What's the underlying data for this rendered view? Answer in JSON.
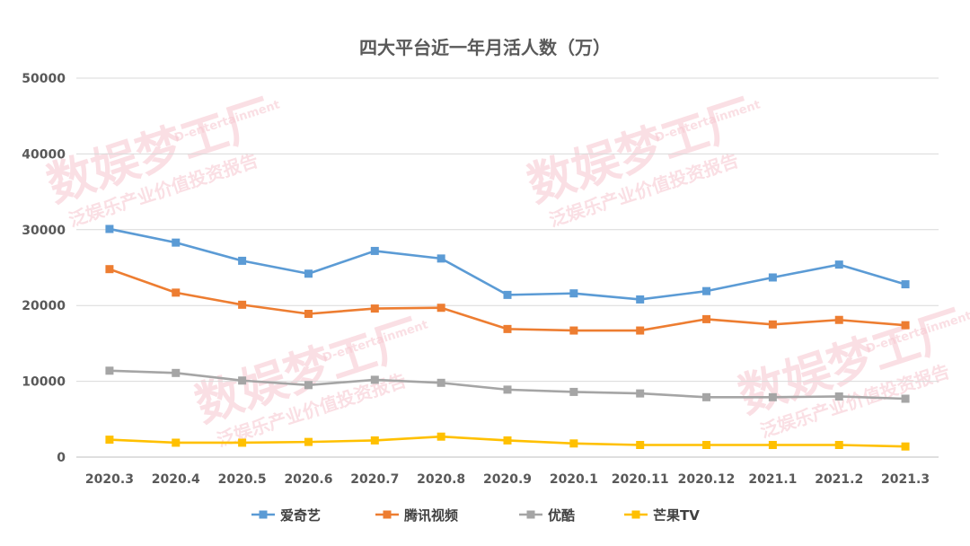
{
  "watermark": {
    "main": "数娱梦工厂",
    "en": "D-entertainment",
    "sub": "泛娱乐产业价值投资报告"
  },
  "chart_data": {
    "type": "line",
    "title": "四大平台近一年月活人数（万）",
    "categories": [
      "2020.3",
      "2020.4",
      "2020.5",
      "2020.6",
      "2020.7",
      "2020.8",
      "2020.9",
      "2020.1",
      "2020.11",
      "2020.12",
      "2021.1",
      "2021.2",
      "2021.3"
    ],
    "ylim": [
      0,
      50000
    ],
    "yticks": [
      "0",
      "10000",
      "20000",
      "30000",
      "40000",
      "50000"
    ],
    "grid": true,
    "legend_position": "bottom",
    "series": [
      {
        "name": "爱奇艺",
        "color": "#5b9bd5",
        "values": [
          30100,
          28300,
          25900,
          24200,
          27200,
          26200,
          21400,
          21600,
          20800,
          21900,
          23700,
          25400,
          22800
        ]
      },
      {
        "name": "腾讯视频",
        "color": "#ed7d31",
        "values": [
          24800,
          21700,
          20100,
          18900,
          19600,
          19700,
          16900,
          16700,
          16700,
          18200,
          17500,
          18100,
          17400
        ]
      },
      {
        "name": "优酷",
        "color": "#a5a5a5",
        "values": [
          11400,
          11100,
          10100,
          9500,
          10200,
          9800,
          8900,
          8600,
          8400,
          7900,
          7900,
          8000,
          7700
        ]
      },
      {
        "name": "芒果TV",
        "color": "#ffc000",
        "values": [
          2300,
          1900,
          1900,
          2000,
          2200,
          2700,
          2200,
          1800,
          1600,
          1600,
          1600,
          1600,
          1400
        ]
      }
    ]
  }
}
